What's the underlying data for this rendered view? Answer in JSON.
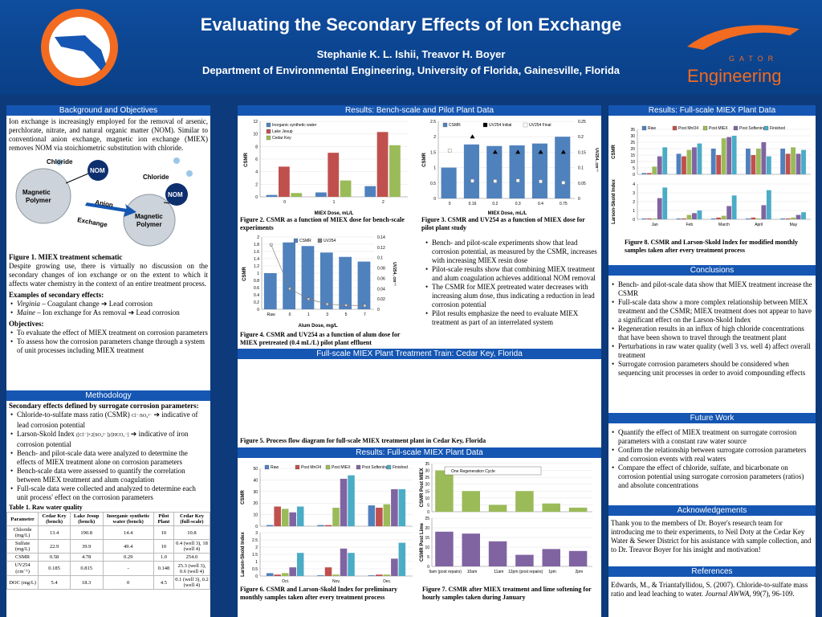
{
  "header": {
    "title": "Evaluating the Secondary Effects of Ion Exchange",
    "authors": "Stephanie K. L. Ishii, Treavor H. Boyer",
    "department": "Department of Environmental Engineering, University of Florida, Gainesville, Florida",
    "logo_right_text": "GATOR",
    "logo_right_word": "Engineering"
  },
  "sections": {
    "background": "Background and Objectives",
    "bench": "Results: Bench-scale and Pilot Plant Data",
    "fullscale_top": "Results: Full-scale MIEX Plant Data",
    "train": "Full-scale MIEX Plant Treatment Train: Cedar Key, Florida",
    "fullscale_mid": "Results: Full-scale MIEX Plant Data",
    "methodology": "Methodology",
    "conclusions": "Conclusions",
    "future": "Future Work",
    "ack": "Acknowledgements",
    "refs": "References"
  },
  "background": {
    "intro": "Ion exchange is increasingly employed for the removal of arsenic, perchlorate, nitrate, and natural organic matter (NOM). Similar to conventional anion exchange, magnetic ion exchange (MIEX) removes NOM via stoichiometric substitution with chloride.",
    "fig1_labels": {
      "chloride_a": "Chloride",
      "chloride_b": "Chloride",
      "nom_a": "NOM",
      "nom_b": "NOM",
      "polymer_a": "Magnetic Polymer",
      "polymer_b": "Magnetic Polymer",
      "arrow_a": "Anion",
      "arrow_b": "Exchange"
    },
    "fig1_cap": "Figure 1. MIEX treatment schematic",
    "para2": "Despite growing use, there is virtually no discussion on the secondary changes of ion exchange or on the extent to which it affects water chemistry in the context of an entire treatment process.",
    "examples_head": "Examples of secondary effects:",
    "examples": [
      {
        "it": "Virginia",
        "rest": " – Coagulant change ➔ Lead corrosion"
      },
      {
        "it": "Maine",
        "rest": " – Ion exchange for As removal ➔ Lead corrosion"
      }
    ],
    "obj_head": "Objectives:",
    "objectives": [
      "To evaluate the effect of MIEX treatment on corrosion parameters",
      "To assess how the corrosion parameters change through a system of unit processes including MIEX treatment"
    ]
  },
  "methodology": {
    "head": "Secondary effects defined by surrogate corrosion parameters:",
    "items": [
      {
        "text": "Chloride-to-sulfate mass ratio (CSMR)",
        "formula": "Cl⁻/SO₄²⁻",
        "tail": "➔ indicative of lead corrosion potential"
      },
      {
        "text": "Larson-Skold Index",
        "formula": "([Cl⁻]+2[SO₄²⁻])/[HCO₃⁻]",
        "tail": "➔ indicative of iron corrosion potential"
      }
    ],
    "more": [
      "Bench- and pilot-scale data were analyzed to determine the effects of MIEX treatment alone on corrosion parameters",
      "Bench-scale data were assessed to quantify the correlation between MIEX treatment and alum coagulation",
      "Full-scale data were collected and analyzed to determine each unit process' effect on the corrosion parameters"
    ],
    "table_cap": "Table 1. Raw water quality",
    "table_head": [
      "Parameter",
      "Cedar Key (bench)",
      "Lake Jesup (bench)",
      "Inorganic synthetic water (bench)",
      "Pilot Plant",
      "Cedar Key (full-scale)"
    ],
    "table_rows": [
      [
        "Chloride (mg/L)",
        "13.4",
        "190.8",
        "14.4",
        "10",
        "10.8"
      ],
      [
        "Sulfate (mg/L)",
        "22.9",
        "39.9",
        "49.4",
        "10",
        "0.4 (well 3), 18 (well 4)"
      ],
      [
        "CSMR",
        "0.58",
        "4.78",
        "0.29",
        "1.0",
        "254.0"
      ],
      [
        "UV254 (cm⁻¹)",
        "0.185",
        "0.815",
        "-",
        "0.148",
        "25.3 (well 3), 0.6 (well 4)"
      ],
      [
        "DOC (mg/L)",
        "5.4",
        "18.3",
        "0",
        "4.5",
        "0.1 (well 3), 0.2 (well 4)"
      ]
    ]
  },
  "bench": {
    "fig2_cap": "Figure 2. CSMR as a function of MIEX dose for bench-scale experiments",
    "fig3_cap": "Figure 3. CSMR and UV254 as a function of MIEX dose for pilot plant study",
    "fig4_cap": "Figure 4. CSMR and UV254 as a function of alum dose for MIEX pretreated (0.4 mL/L) pilot plant effluent",
    "bullets": [
      "Bench- and pilot-scale experiments show that lead corrosion potential, as measured by the CSMR, increases with increasing MIEX resin dose",
      "Pilot-scale results show that combining MIEX treatment and alum coagulation achieves additional NOM removal",
      "The CSMR for MIEX pretreated water decreases with increasing alum dose, thus indicating a reduction in lead corrosion potential",
      "Pilot results emphasize the need to evaluate MIEX treatment as part of an interrelated system"
    ],
    "fig5_cap": "Figure 5. Process flow diagram for full-scale MIEX treatment plant in Cedar Key, Florida",
    "fig6_cap": "Figure 6. CSMR and Larson-Skold Index for preliminary monthly samples taken after every treatment process",
    "fig7_cap": "Figure 7. CSMR after MIEX treatment and lime softening for hourly samples taken during January",
    "fig8_cap": "Figure 8. CSMR and Larson-Skold Index for modified monthly samples taken after every treatment process"
  },
  "chart_data": [
    {
      "id": "fig2",
      "type": "bar",
      "categories": [
        "0",
        "1",
        "2"
      ],
      "xlabel": "MIEX Dose, mL/L",
      "ylabel": "CSMR",
      "ylim": [
        0,
        12
      ],
      "series": [
        {
          "name": "Inorganic synthetic water",
          "color": "#4f81bd",
          "values": [
            0.3,
            0.7,
            1.7
          ]
        },
        {
          "name": "Lake Jesup",
          "color": "#c0504d",
          "values": [
            4.8,
            7.0,
            10.3
          ]
        },
        {
          "name": "Cedar Key",
          "color": "#9bbb59",
          "values": [
            0.6,
            2.6,
            8.2
          ]
        }
      ]
    },
    {
      "id": "fig3",
      "type": "bar",
      "categories": [
        "0",
        "0.16",
        "0.2",
        "0.3",
        "0.4",
        "0.75"
      ],
      "xlabel": "MIEX Dose, mL/L",
      "ylabel": "CSMR",
      "ylabel2": "UV254, cm⁻¹",
      "ylim": [
        0,
        2.5
      ],
      "ylim2": [
        0,
        0.25
      ],
      "series": [
        {
          "name": "CSMR",
          "color": "#4f81bd",
          "values": [
            1.0,
            1.75,
            1.7,
            1.72,
            1.78,
            2.0
          ]
        },
        {
          "name": "UV254 Initial",
          "color": "#000000",
          "values": [
            null,
            0.2,
            0.15,
            0.15,
            0.15,
            0.15
          ]
        },
        {
          "name": "UV254 Final",
          "color": "#ffffff",
          "values": [
            0.155,
            0.057,
            0.056,
            0.058,
            0.055,
            0.051
          ]
        }
      ]
    },
    {
      "id": "fig4",
      "type": "bar",
      "categories": [
        "Raw",
        "0",
        "1",
        "3",
        "5",
        "7"
      ],
      "xlabel": "Alum Dose, mg/L",
      "ylabel": "CSMR",
      "ylabel2": "UV254, cm⁻¹",
      "ylim": [
        0,
        2
      ],
      "ylim2": [
        0,
        0.14
      ],
      "series": [
        {
          "name": "CSMR",
          "color": "#4f81bd",
          "values": [
            1.0,
            1.85,
            1.75,
            1.57,
            1.45,
            1.32
          ]
        },
        {
          "name": "UV254",
          "color": "#7f7f7f",
          "values": [
            0.125,
            0.04,
            0.02,
            0.01,
            0.008,
            0.007
          ]
        }
      ]
    },
    {
      "id": "fig6",
      "type": "bar",
      "categories": [
        "Oct.",
        "Nov.",
        "Dec."
      ],
      "ylabel": "CSMR",
      "ylabel2": "Larson-Skold Index",
      "ylim": [
        0,
        50
      ],
      "ylim2": [
        0,
        3
      ],
      "series": [
        {
          "name": "Raw",
          "color": "#4f81bd",
          "values": [
            1,
            1,
            18
          ],
          "lsi": [
            0.2,
            0.05,
            0.05
          ]
        },
        {
          "name": "Post MnO4",
          "color": "#c0504d",
          "values": [
            17,
            1,
            16
          ],
          "lsi": [
            0.1,
            0.6,
            0.1
          ]
        },
        {
          "name": "Post MIEX",
          "color": "#9bbb59",
          "values": [
            15,
            16,
            19
          ],
          "lsi": [
            0.2,
            0.1,
            0.1
          ]
        },
        {
          "name": "Post Softening",
          "color": "#8064a2",
          "values": [
            12,
            41,
            32
          ],
          "lsi": [
            0.6,
            1.9,
            1.2
          ]
        },
        {
          "name": "Finished",
          "color": "#4bacc6",
          "values": [
            17,
            44,
            32
          ],
          "lsi": [
            1.6,
            1.6,
            2.3
          ]
        }
      ]
    },
    {
      "id": "fig7",
      "type": "bar",
      "categories": [
        "9am (post repairs)",
        "10am",
        "11am",
        "12pm (post repairs)",
        "1pm",
        "2pm"
      ],
      "ylabel": "CSMR Post MIEX",
      "ylabel2": "CSMR Post Lime",
      "ylim": [
        0,
        35
      ],
      "ylim2": [
        0,
        25
      ],
      "annotation": "One Regeneration Cycle",
      "series": [
        {
          "name": "Post MIEX",
          "color": "#9bbb59",
          "values": [
            30,
            15,
            5,
            15,
            6,
            3
          ]
        },
        {
          "name": "Post Lime",
          "color": "#8064a2",
          "values": [
            18,
            17,
            13,
            6,
            9,
            8
          ]
        }
      ]
    },
    {
      "id": "fig8",
      "type": "bar",
      "categories": [
        "Jan",
        "Feb",
        "March",
        "April",
        "May"
      ],
      "ylabel": "CSMR",
      "ylabel2": "Larson-Skold Index",
      "ylim": [
        0,
        35
      ],
      "ylim2": [
        0,
        4
      ],
      "series": [
        {
          "name": "Raw",
          "color": "#4f81bd",
          "values": [
            1,
            16,
            20,
            20,
            20
          ],
          "lsi": [
            0.1,
            0.1,
            0.1,
            0.1,
            0.1
          ]
        },
        {
          "name": "Post MnO4",
          "color": "#c0504d",
          "values": [
            1,
            14,
            15,
            15,
            16
          ],
          "lsi": [
            0.1,
            0.1,
            0.2,
            0.2,
            0.1
          ]
        },
        {
          "name": "Post MIEX",
          "color": "#9bbb59",
          "values": [
            6,
            19,
            28,
            20,
            21
          ],
          "lsi": [
            0.1,
            0.5,
            0.4,
            0.1,
            0.2
          ]
        },
        {
          "name": "Post Softening",
          "color": "#8064a2",
          "values": [
            14,
            21,
            29,
            25,
            16
          ],
          "lsi": [
            2.4,
            0.7,
            1.5,
            1.6,
            0.5
          ]
        },
        {
          "name": "Finished",
          "color": "#4bacc6",
          "values": [
            21,
            24,
            30,
            14,
            19
          ],
          "lsi": [
            3.6,
            1.0,
            2.7,
            3.3,
            0.8
          ]
        }
      ]
    }
  ],
  "conclusions": [
    "Bench- and pilot-scale data show that MIEX treatment increase the CSMR",
    "Full-scale data show a more complex relationship between MIEX treatment and the CSMR; MIEX treatment does not appear to have a significant effect on the Larson-Skold Index",
    "Regeneration results in an influx of high chloride concentrations that have been shown to travel through the treatment plant",
    "Perturbations in raw water quality (well 3 vs. well 4) affect overall treatment",
    "Surrogate corrosion parameters should be considered when sequencing unit processes in order to avoid compounding effects"
  ],
  "future": [
    "Quantify the effect of MIEX treatment on surrogate corrosion parameters with a constant raw water source",
    "Confirm the relationship between surrogate corrosion parameters and corrosion events with real waters",
    "Compare the effect of chloride, sulfate, and bicarbonate on corrosion potential using surrogate corrosion parameters (ratios) and absolute concentrations"
  ],
  "ack": "Thank you to the members of Dr. Boyer's research team for introducing me to their experiments, to Neil Doty at the Cedar Key Water & Sewer District for his assistance with sample collection, and to Dr. Treavor Boyer for his insight and motivation!",
  "refs": {
    "a": "Edwards, M., & Triantafyllidou, S. (2007). Chloride-to-sulfate mass ratio and lead leaching to water. ",
    "j": "Journal AWWA",
    "b": ", 99(7), 96-109."
  }
}
